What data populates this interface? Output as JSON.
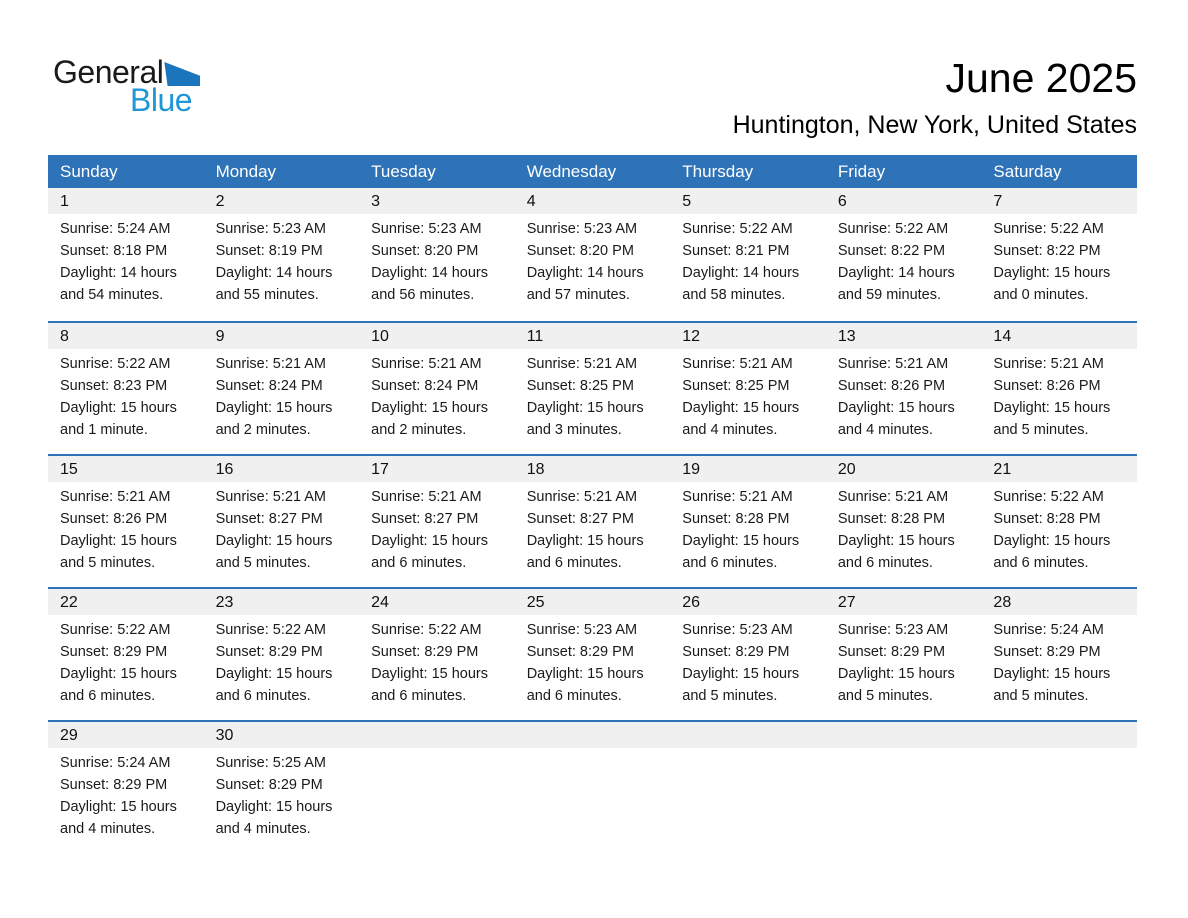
{
  "logo": {
    "general": "General",
    "blue": "Blue"
  },
  "header": {
    "title": "June 2025",
    "subtitle": "Huntington, New York, United States"
  },
  "colors": {
    "header_bar_blue": "#2E73B7",
    "week_separator_blue": "#2E73B7",
    "day_band_gray": "#F0F0F0",
    "logo_triangle_blue": "#1B75BC",
    "logo_text_blue": "#2196D6",
    "text_black": "#1a1a1a",
    "day_name_white": "#ffffff"
  },
  "day_names": [
    "Sunday",
    "Monday",
    "Tuesday",
    "Wednesday",
    "Thursday",
    "Friday",
    "Saturday"
  ],
  "weeks": [
    {
      "days": [
        {
          "num": "1",
          "sunrise": "Sunrise: 5:24 AM",
          "sunset": "Sunset: 8:18 PM",
          "daylight_line1": "Daylight: 14 hours",
          "daylight_line2": "and 54 minutes."
        },
        {
          "num": "2",
          "sunrise": "Sunrise: 5:23 AM",
          "sunset": "Sunset: 8:19 PM",
          "daylight_line1": "Daylight: 14 hours",
          "daylight_line2": "and 55 minutes."
        },
        {
          "num": "3",
          "sunrise": "Sunrise: 5:23 AM",
          "sunset": "Sunset: 8:20 PM",
          "daylight_line1": "Daylight: 14 hours",
          "daylight_line2": "and 56 minutes."
        },
        {
          "num": "4",
          "sunrise": "Sunrise: 5:23 AM",
          "sunset": "Sunset: 8:20 PM",
          "daylight_line1": "Daylight: 14 hours",
          "daylight_line2": "and 57 minutes."
        },
        {
          "num": "5",
          "sunrise": "Sunrise: 5:22 AM",
          "sunset": "Sunset: 8:21 PM",
          "daylight_line1": "Daylight: 14 hours",
          "daylight_line2": "and 58 minutes."
        },
        {
          "num": "6",
          "sunrise": "Sunrise: 5:22 AM",
          "sunset": "Sunset: 8:22 PM",
          "daylight_line1": "Daylight: 14 hours",
          "daylight_line2": "and 59 minutes."
        },
        {
          "num": "7",
          "sunrise": "Sunrise: 5:22 AM",
          "sunset": "Sunset: 8:22 PM",
          "daylight_line1": "Daylight: 15 hours",
          "daylight_line2": "and 0 minutes."
        }
      ]
    },
    {
      "days": [
        {
          "num": "8",
          "sunrise": "Sunrise: 5:22 AM",
          "sunset": "Sunset: 8:23 PM",
          "daylight_line1": "Daylight: 15 hours",
          "daylight_line2": "and 1 minute."
        },
        {
          "num": "9",
          "sunrise": "Sunrise: 5:21 AM",
          "sunset": "Sunset: 8:24 PM",
          "daylight_line1": "Daylight: 15 hours",
          "daylight_line2": "and 2 minutes."
        },
        {
          "num": "10",
          "sunrise": "Sunrise: 5:21 AM",
          "sunset": "Sunset: 8:24 PM",
          "daylight_line1": "Daylight: 15 hours",
          "daylight_line2": "and 2 minutes."
        },
        {
          "num": "11",
          "sunrise": "Sunrise: 5:21 AM",
          "sunset": "Sunset: 8:25 PM",
          "daylight_line1": "Daylight: 15 hours",
          "daylight_line2": "and 3 minutes."
        },
        {
          "num": "12",
          "sunrise": "Sunrise: 5:21 AM",
          "sunset": "Sunset: 8:25 PM",
          "daylight_line1": "Daylight: 15 hours",
          "daylight_line2": "and 4 minutes."
        },
        {
          "num": "13",
          "sunrise": "Sunrise: 5:21 AM",
          "sunset": "Sunset: 8:26 PM",
          "daylight_line1": "Daylight: 15 hours",
          "daylight_line2": "and 4 minutes."
        },
        {
          "num": "14",
          "sunrise": "Sunrise: 5:21 AM",
          "sunset": "Sunset: 8:26 PM",
          "daylight_line1": "Daylight: 15 hours",
          "daylight_line2": "and 5 minutes."
        }
      ]
    },
    {
      "days": [
        {
          "num": "15",
          "sunrise": "Sunrise: 5:21 AM",
          "sunset": "Sunset: 8:26 PM",
          "daylight_line1": "Daylight: 15 hours",
          "daylight_line2": "and 5 minutes."
        },
        {
          "num": "16",
          "sunrise": "Sunrise: 5:21 AM",
          "sunset": "Sunset: 8:27 PM",
          "daylight_line1": "Daylight: 15 hours",
          "daylight_line2": "and 5 minutes."
        },
        {
          "num": "17",
          "sunrise": "Sunrise: 5:21 AM",
          "sunset": "Sunset: 8:27 PM",
          "daylight_line1": "Daylight: 15 hours",
          "daylight_line2": "and 6 minutes."
        },
        {
          "num": "18",
          "sunrise": "Sunrise: 5:21 AM",
          "sunset": "Sunset: 8:27 PM",
          "daylight_line1": "Daylight: 15 hours",
          "daylight_line2": "and 6 minutes."
        },
        {
          "num": "19",
          "sunrise": "Sunrise: 5:21 AM",
          "sunset": "Sunset: 8:28 PM",
          "daylight_line1": "Daylight: 15 hours",
          "daylight_line2": "and 6 minutes."
        },
        {
          "num": "20",
          "sunrise": "Sunrise: 5:21 AM",
          "sunset": "Sunset: 8:28 PM",
          "daylight_line1": "Daylight: 15 hours",
          "daylight_line2": "and 6 minutes."
        },
        {
          "num": "21",
          "sunrise": "Sunrise: 5:22 AM",
          "sunset": "Sunset: 8:28 PM",
          "daylight_line1": "Daylight: 15 hours",
          "daylight_line2": "and 6 minutes."
        }
      ]
    },
    {
      "days": [
        {
          "num": "22",
          "sunrise": "Sunrise: 5:22 AM",
          "sunset": "Sunset: 8:29 PM",
          "daylight_line1": "Daylight: 15 hours",
          "daylight_line2": "and 6 minutes."
        },
        {
          "num": "23",
          "sunrise": "Sunrise: 5:22 AM",
          "sunset": "Sunset: 8:29 PM",
          "daylight_line1": "Daylight: 15 hours",
          "daylight_line2": "and 6 minutes."
        },
        {
          "num": "24",
          "sunrise": "Sunrise: 5:22 AM",
          "sunset": "Sunset: 8:29 PM",
          "daylight_line1": "Daylight: 15 hours",
          "daylight_line2": "and 6 minutes."
        },
        {
          "num": "25",
          "sunrise": "Sunrise: 5:23 AM",
          "sunset": "Sunset: 8:29 PM",
          "daylight_line1": "Daylight: 15 hours",
          "daylight_line2": "and 6 minutes."
        },
        {
          "num": "26",
          "sunrise": "Sunrise: 5:23 AM",
          "sunset": "Sunset: 8:29 PM",
          "daylight_line1": "Daylight: 15 hours",
          "daylight_line2": "and 5 minutes."
        },
        {
          "num": "27",
          "sunrise": "Sunrise: 5:23 AM",
          "sunset": "Sunset: 8:29 PM",
          "daylight_line1": "Daylight: 15 hours",
          "daylight_line2": "and 5 minutes."
        },
        {
          "num": "28",
          "sunrise": "Sunrise: 5:24 AM",
          "sunset": "Sunset: 8:29 PM",
          "daylight_line1": "Daylight: 15 hours",
          "daylight_line2": "and 5 minutes."
        }
      ]
    },
    {
      "days": [
        {
          "num": "29",
          "sunrise": "Sunrise: 5:24 AM",
          "sunset": "Sunset: 8:29 PM",
          "daylight_line1": "Daylight: 15 hours",
          "daylight_line2": "and 4 minutes."
        },
        {
          "num": "30",
          "sunrise": "Sunrise: 5:25 AM",
          "sunset": "Sunset: 8:29 PM",
          "daylight_line1": "Daylight: 15 hours",
          "daylight_line2": "and 4 minutes."
        },
        null,
        null,
        null,
        null,
        null
      ]
    }
  ]
}
